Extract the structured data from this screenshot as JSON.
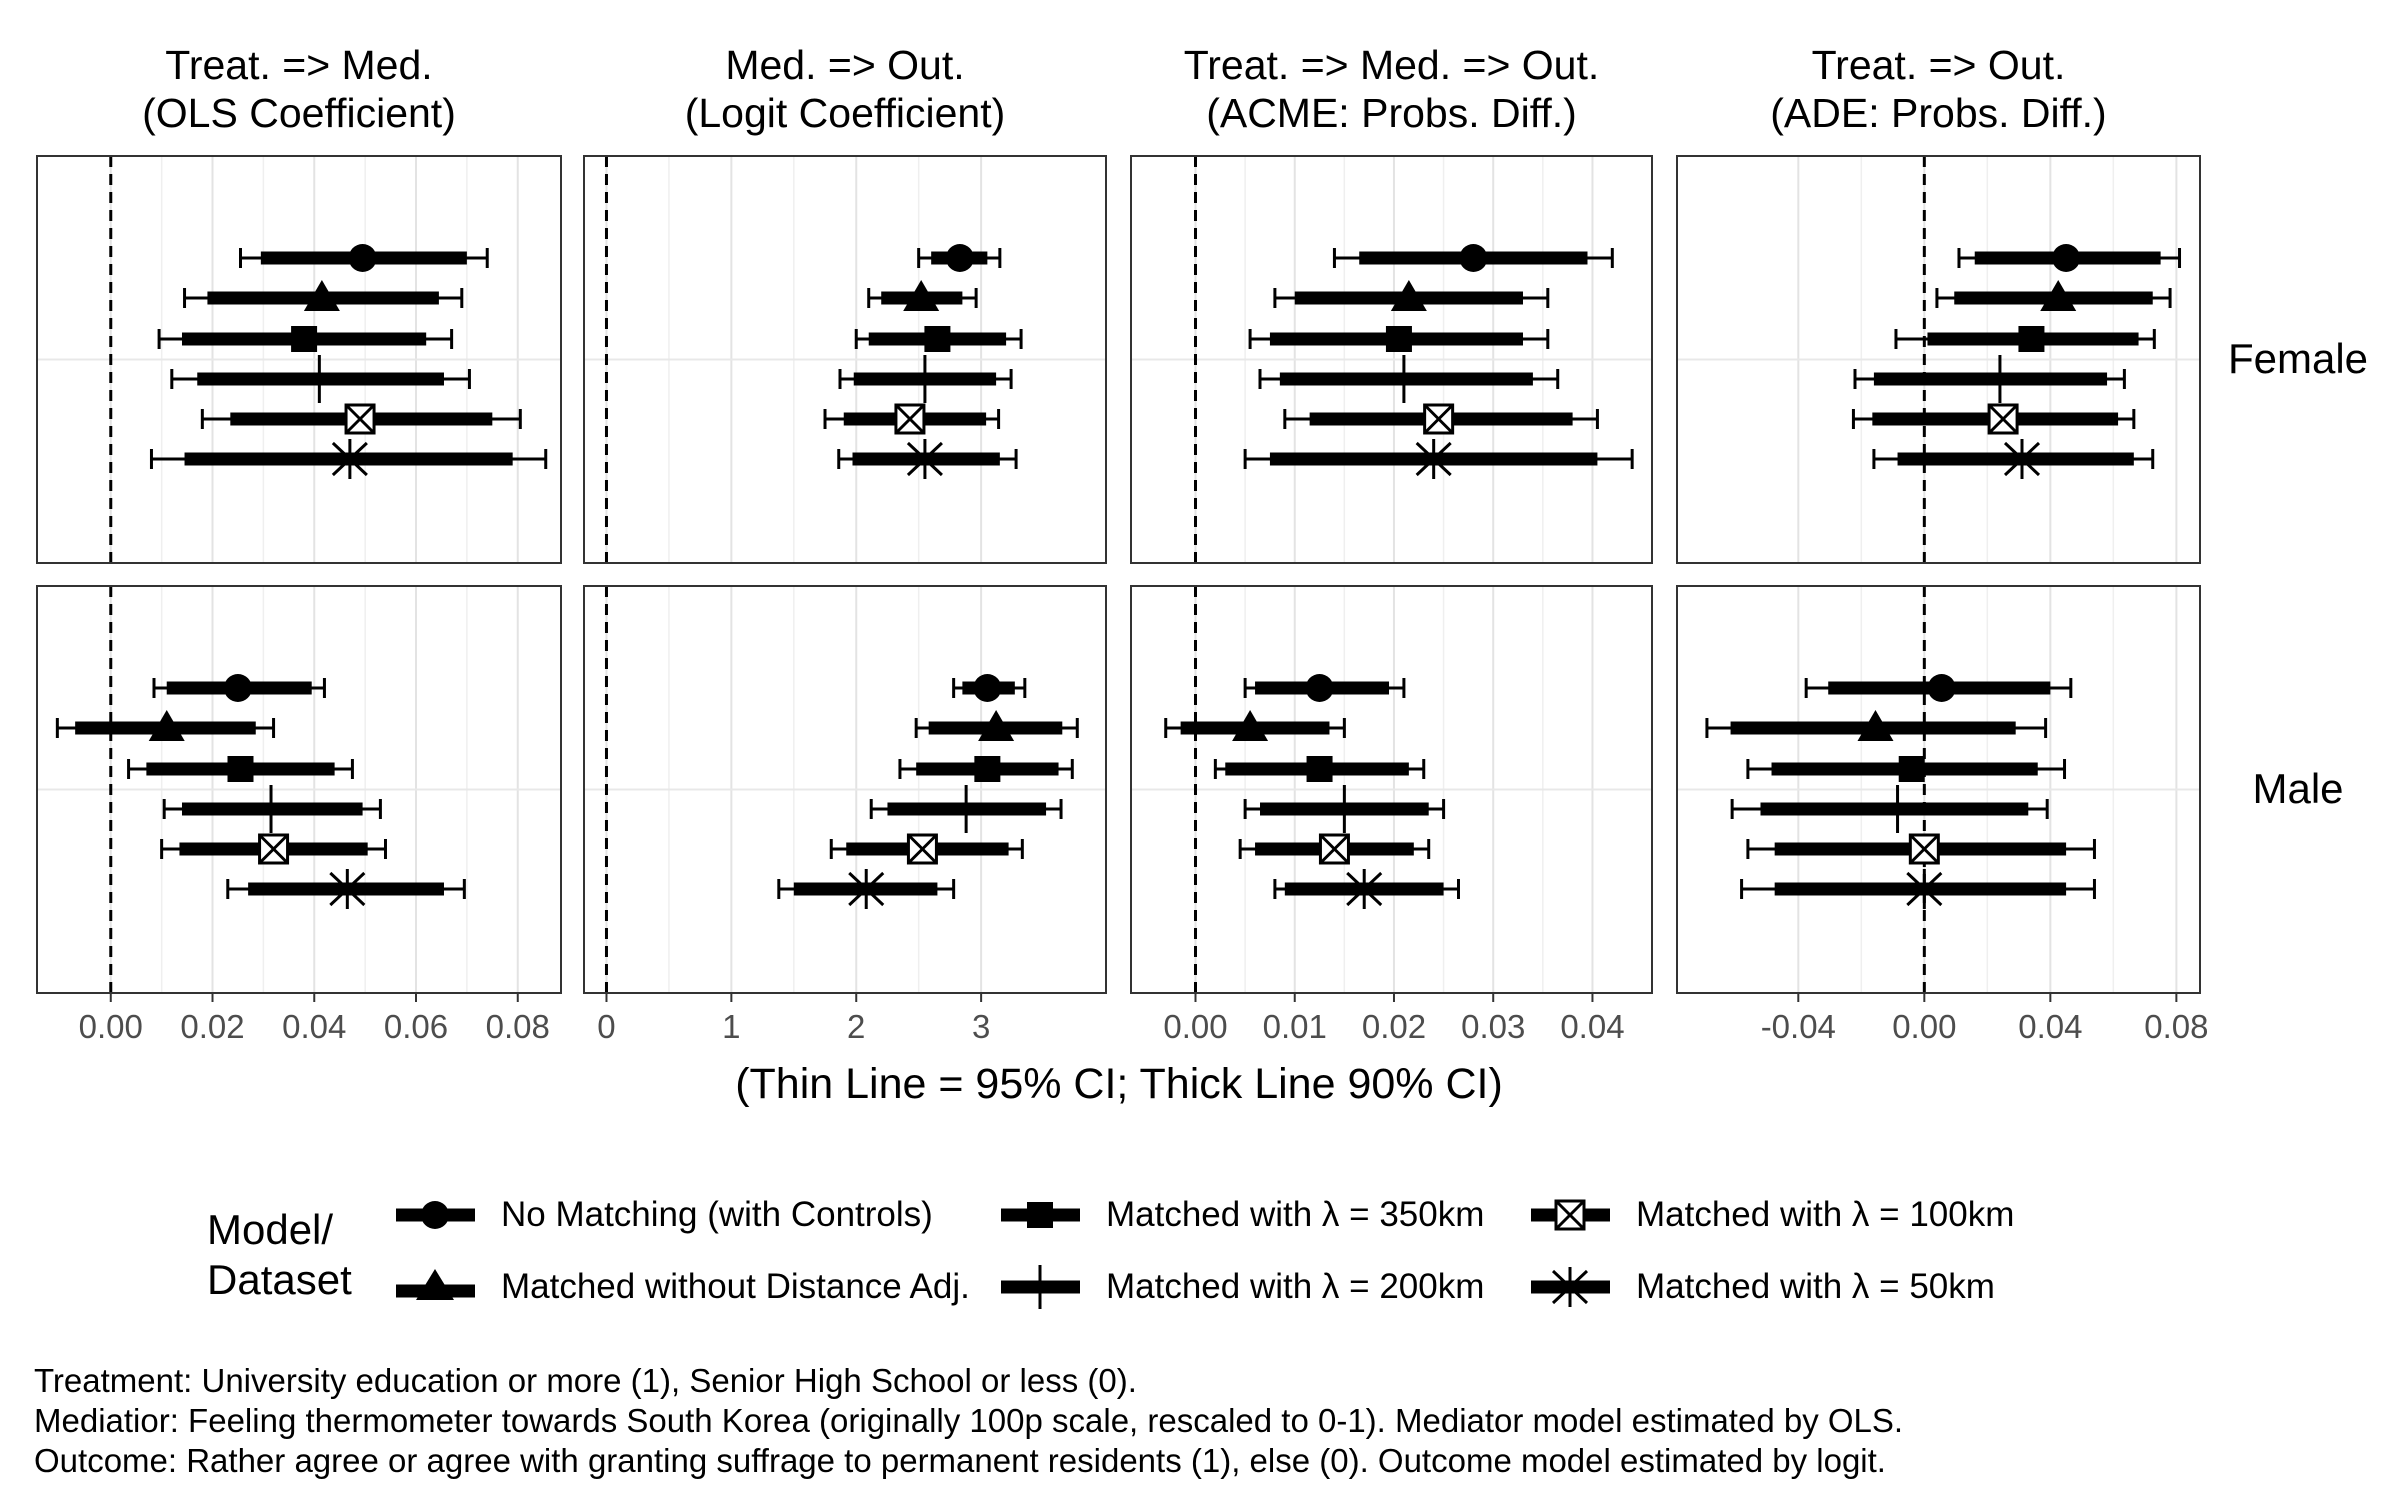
{
  "chart_data": {
    "type": "forest-plot",
    "xlabel": "(Thin Line = 95% CI; Thick Line 90% CI)",
    "row_labels": [
      "Female",
      "Male"
    ],
    "columns": [
      {
        "title": [
          "Treat. => Med.",
          "(OLS Coefficient)"
        ],
        "xlim": [
          -0.0145,
          0.0885
        ],
        "ticks": [
          0.0,
          0.02,
          0.04,
          0.06,
          0.08
        ],
        "tick_labels": [
          "0.00",
          "0.02",
          "0.04",
          "0.06",
          "0.08"
        ]
      },
      {
        "title": [
          "Med. => Out.",
          "(Logit Coefficient)"
        ],
        "xlim": [
          -0.18,
          4.0
        ],
        "ticks": [
          0,
          1,
          2,
          3
        ],
        "tick_labels": [
          "0",
          "1",
          "2",
          "3"
        ]
      },
      {
        "title": [
          "Treat. => Med. => Out.",
          "(ACME: Probs. Diff.)"
        ],
        "xlim": [
          -0.0065,
          0.046
        ],
        "ticks": [
          0.0,
          0.01,
          0.02,
          0.03,
          0.04
        ],
        "tick_labels": [
          "0.00",
          "0.01",
          "0.02",
          "0.03",
          "0.04"
        ]
      },
      {
        "title": [
          "Treat. =>  Out.",
          "(ADE: Probs. Diff.)"
        ],
        "xlim": [
          -0.0785,
          0.0875
        ],
        "ticks": [
          -0.04,
          0.0,
          0.04,
          0.08
        ],
        "tick_labels": [
          "-0.04",
          "0.00",
          "0.04",
          "0.08"
        ]
      }
    ],
    "series_order": [
      "No Matching (with Controls)",
      "Matched without Distance Adj.",
      "Matched with λ = 350km",
      "Matched with λ = 200km",
      "Matched with λ = 100km",
      "Matched with λ = 50km"
    ],
    "panels": [
      {
        "row": "Female",
        "col": 0,
        "estimates": [
          {
            "point": 0.0495,
            "ci90": [
              0.0295,
              0.07
            ],
            "ci95": [
              0.0255,
              0.074
            ]
          },
          {
            "point": 0.0415,
            "ci90": [
              0.019,
              0.0645
            ],
            "ci95": [
              0.0145,
              0.069
            ]
          },
          {
            "point": 0.038,
            "ci90": [
              0.014,
              0.062
            ],
            "ci95": [
              0.0095,
              0.067
            ]
          },
          {
            "point": 0.041,
            "ci90": [
              0.017,
              0.0655
            ],
            "ci95": [
              0.012,
              0.0705
            ]
          },
          {
            "point": 0.049,
            "ci90": [
              0.0235,
              0.075
            ],
            "ci95": [
              0.018,
              0.0805
            ]
          },
          {
            "point": 0.047,
            "ci90": [
              0.0145,
              0.079
            ],
            "ci95": [
              0.008,
              0.0855
            ]
          }
        ]
      },
      {
        "row": "Female",
        "col": 1,
        "estimates": [
          {
            "point": 2.83,
            "ci90": [
              2.6,
              3.05
            ],
            "ci95": [
              2.5,
              3.15
            ]
          },
          {
            "point": 2.52,
            "ci90": [
              2.2,
              2.85
            ],
            "ci95": [
              2.1,
              2.96
            ]
          },
          {
            "point": 2.65,
            "ci90": [
              2.1,
              3.2
            ],
            "ci95": [
              2.0,
              3.32
            ]
          },
          {
            "point": 2.55,
            "ci90": [
              1.98,
              3.12
            ],
            "ci95": [
              1.87,
              3.24
            ]
          },
          {
            "point": 2.43,
            "ci90": [
              1.9,
              3.04
            ],
            "ci95": [
              1.75,
              3.14
            ]
          },
          {
            "point": 2.55,
            "ci90": [
              1.97,
              3.15
            ],
            "ci95": [
              1.86,
              3.28
            ]
          }
        ]
      },
      {
        "row": "Female",
        "col": 2,
        "estimates": [
          {
            "point": 0.028,
            "ci90": [
              0.0165,
              0.0395
            ],
            "ci95": [
              0.014,
              0.042
            ]
          },
          {
            "point": 0.0215,
            "ci90": [
              0.01,
              0.033
            ],
            "ci95": [
              0.008,
              0.0355
            ]
          },
          {
            "point": 0.0205,
            "ci90": [
              0.0075,
              0.033
            ],
            "ci95": [
              0.0055,
              0.0355
            ]
          },
          {
            "point": 0.021,
            "ci90": [
              0.0085,
              0.034
            ],
            "ci95": [
              0.0065,
              0.0365
            ]
          },
          {
            "point": 0.0245,
            "ci90": [
              0.0115,
              0.038
            ],
            "ci95": [
              0.009,
              0.0405
            ]
          },
          {
            "point": 0.024,
            "ci90": [
              0.0075,
              0.0405
            ],
            "ci95": [
              0.005,
              0.044
            ]
          }
        ]
      },
      {
        "row": "Female",
        "col": 3,
        "estimates": [
          {
            "point": 0.045,
            "ci90": [
              0.016,
              0.075
            ],
            "ci95": [
              0.011,
              0.081
            ]
          },
          {
            "point": 0.0425,
            "ci90": [
              0.0095,
              0.0725
            ],
            "ci95": [
              0.004,
              0.078
            ]
          },
          {
            "point": 0.034,
            "ci90": [
              0.001,
              0.068
            ],
            "ci95": [
              -0.009,
              0.073
            ]
          },
          {
            "point": 0.024,
            "ci90": [
              -0.016,
              0.058
            ],
            "ci95": [
              -0.022,
              0.0635
            ]
          },
          {
            "point": 0.025,
            "ci90": [
              -0.0165,
              0.0615
            ],
            "ci95": [
              -0.0225,
              0.0665
            ]
          },
          {
            "point": 0.031,
            "ci90": [
              -0.0085,
              0.0665
            ],
            "ci95": [
              -0.016,
              0.0725
            ]
          }
        ]
      },
      {
        "row": "Male",
        "col": 0,
        "estimates": [
          {
            "point": 0.025,
            "ci90": [
              0.011,
              0.0395
            ],
            "ci95": [
              0.0085,
              0.042
            ]
          },
          {
            "point": 0.011,
            "ci90": [
              -0.007,
              0.0285
            ],
            "ci95": [
              -0.0105,
              0.032
            ]
          },
          {
            "point": 0.0255,
            "ci90": [
              0.007,
              0.044
            ],
            "ci95": [
              0.0035,
              0.0475
            ]
          },
          {
            "point": 0.0315,
            "ci90": [
              0.014,
              0.0495
            ],
            "ci95": [
              0.0105,
              0.053
            ]
          },
          {
            "point": 0.032,
            "ci90": [
              0.0135,
              0.0505
            ],
            "ci95": [
              0.01,
              0.054
            ]
          },
          {
            "point": 0.0465,
            "ci90": [
              0.027,
              0.0655
            ],
            "ci95": [
              0.023,
              0.0695
            ]
          }
        ]
      },
      {
        "row": "Male",
        "col": 1,
        "estimates": [
          {
            "point": 3.05,
            "ci90": [
              2.85,
              3.27
            ],
            "ci95": [
              2.78,
              3.35
            ]
          },
          {
            "point": 3.12,
            "ci90": [
              2.58,
              3.65
            ],
            "ci95": [
              2.48,
              3.77
            ]
          },
          {
            "point": 3.05,
            "ci90": [
              2.48,
              3.62
            ],
            "ci95": [
              2.35,
              3.73
            ]
          },
          {
            "point": 2.88,
            "ci90": [
              2.25,
              3.52
            ],
            "ci95": [
              2.12,
              3.64
            ]
          },
          {
            "point": 2.53,
            "ci90": [
              1.92,
              3.22
            ],
            "ci95": [
              1.8,
              3.33
            ]
          },
          {
            "point": 2.08,
            "ci90": [
              1.5,
              2.65
            ],
            "ci95": [
              1.38,
              2.78
            ]
          }
        ]
      },
      {
        "row": "Male",
        "col": 2,
        "estimates": [
          {
            "point": 0.0125,
            "ci90": [
              0.006,
              0.0195
            ],
            "ci95": [
              0.005,
              0.021
            ]
          },
          {
            "point": 0.0055,
            "ci90": [
              -0.0015,
              0.0135
            ],
            "ci95": [
              -0.003,
              0.015
            ]
          },
          {
            "point": 0.0125,
            "ci90": [
              0.003,
              0.0215
            ],
            "ci95": [
              0.002,
              0.023
            ]
          },
          {
            "point": 0.015,
            "ci90": [
              0.0065,
              0.0235
            ],
            "ci95": [
              0.005,
              0.025
            ]
          },
          {
            "point": 0.014,
            "ci90": [
              0.006,
              0.022
            ],
            "ci95": [
              0.0045,
              0.0235
            ]
          },
          {
            "point": 0.017,
            "ci90": [
              0.009,
              0.025
            ],
            "ci95": [
              0.008,
              0.0265
            ]
          }
        ]
      },
      {
        "row": "Male",
        "col": 3,
        "estimates": [
          {
            "point": 0.0055,
            "ci90": [
              -0.0305,
              0.04
            ],
            "ci95": [
              -0.0375,
              0.0465
            ]
          },
          {
            "point": -0.0155,
            "ci90": [
              -0.0615,
              0.029
            ],
            "ci95": [
              -0.069,
              0.0385
            ]
          },
          {
            "point": -0.004,
            "ci90": [
              -0.0485,
              0.036
            ],
            "ci95": [
              -0.056,
              0.0445
            ]
          },
          {
            "point": -0.0085,
            "ci90": [
              -0.052,
              0.033
            ],
            "ci95": [
              -0.061,
              0.039
            ]
          },
          {
            "point": 0.0,
            "ci90": [
              -0.0475,
              0.045
            ],
            "ci95": [
              -0.056,
              0.054
            ]
          },
          {
            "point": 0.0,
            "ci90": [
              -0.0475,
              0.045
            ],
            "ci95": [
              -0.058,
              0.054
            ]
          }
        ]
      }
    ]
  },
  "legend": {
    "title_line1": "Model/",
    "title_line2": "Dataset",
    "items": [
      {
        "label": "No Matching (with Controls)",
        "shape": "circle"
      },
      {
        "label": "Matched without Distance Adj.",
        "shape": "triangle"
      },
      {
        "label": "Matched with  λ  = 350km",
        "shape": "square"
      },
      {
        "label": "Matched with  λ  = 200km",
        "shape": "plus"
      },
      {
        "label": "Matched with  λ  = 100km",
        "shape": "square-x"
      },
      {
        "label": "Matched with  λ  = 50km",
        "shape": "asterisk"
      }
    ]
  },
  "notes": {
    "treatment": "Treatment: University education or more (1), Senior High School or less (0).",
    "mediator": "Mediatior: Feeling thermometer towards South Korea (originally 100p scale, rescaled to 0-1). Mediator model estimated by OLS.",
    "outcome": "Outcome: Rather agree or agree with granting suffrage to permanent residents (1), else (0). Outcome model estimated by logit."
  }
}
